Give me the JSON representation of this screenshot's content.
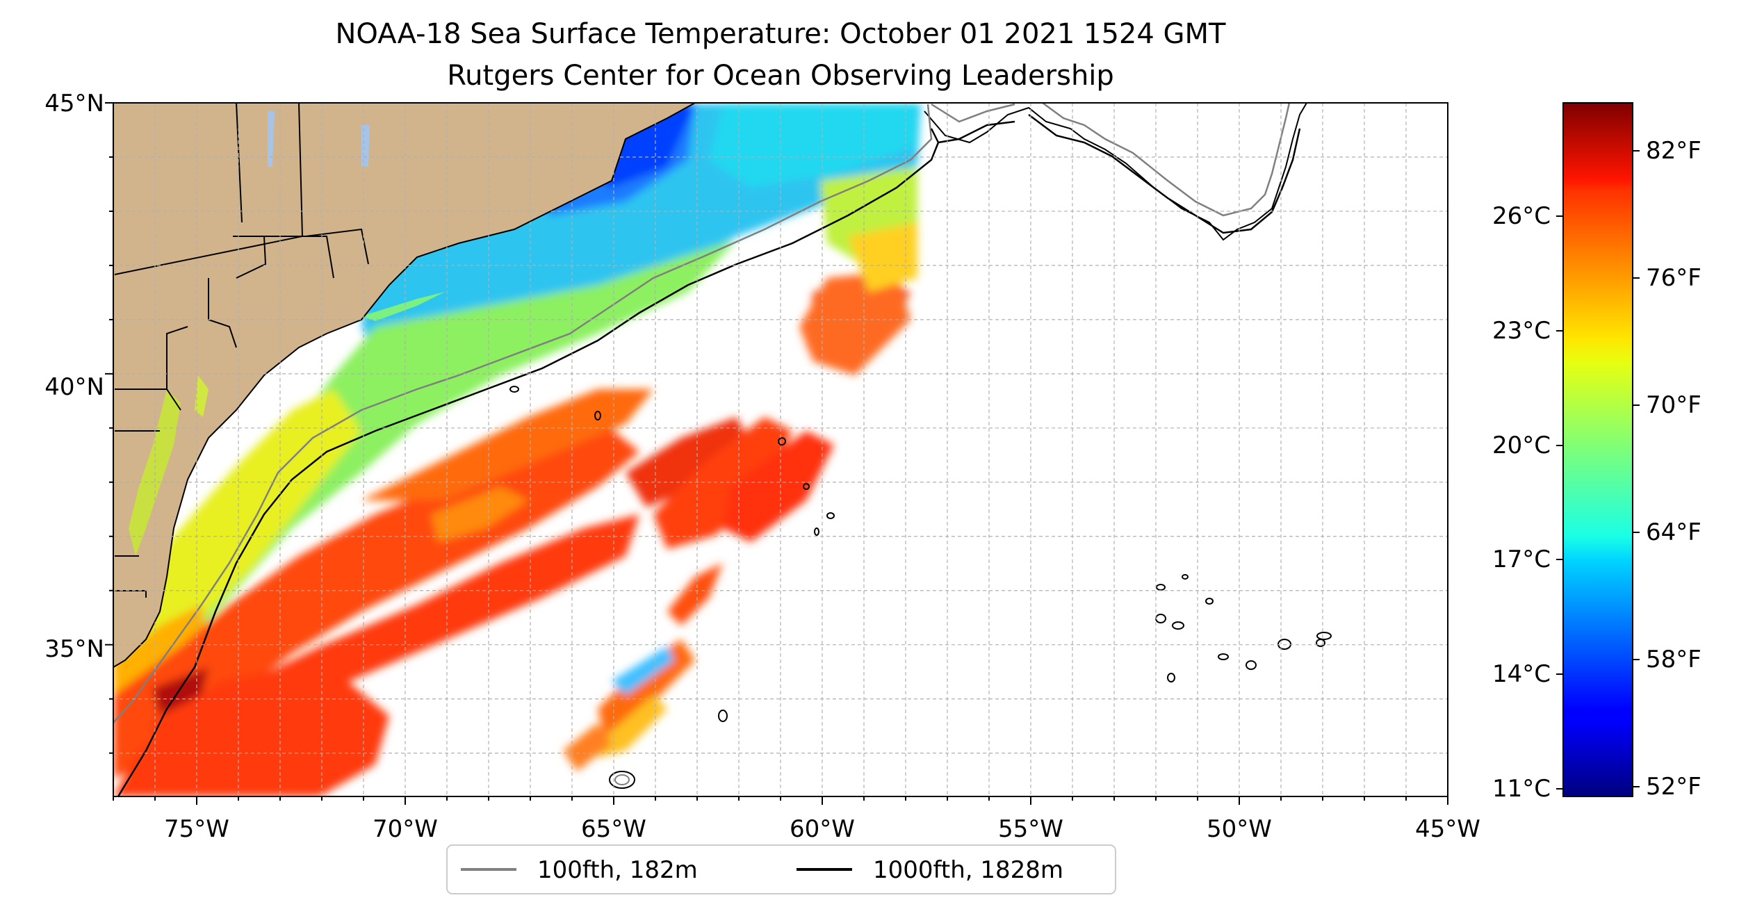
{
  "title": {
    "line1": "NOAA-18 Sea Surface Temperature: October 01 2021 1524 GMT",
    "line2": "Rutgers Center for Ocean Observing Leadership"
  },
  "map": {
    "lon_labels": [
      "75°W",
      "70°W",
      "65°W",
      "60°W",
      "55°W",
      "50°W",
      "45°W"
    ],
    "lat_labels": [
      "45°N",
      "40°N",
      "35°N"
    ],
    "lon_range": [
      -77,
      -45
    ],
    "lat_range": [
      32.2,
      45
    ],
    "grid": true,
    "land_color": "#d2b48c",
    "lake_color": "#a6c3e8"
  },
  "colorbar": {
    "colormap": "jet",
    "celsius_labels": [
      "26°C",
      "23°C",
      "20°C",
      "17°C",
      "14°C",
      "11°C"
    ],
    "fahrenheit_labels": [
      "82°F",
      "76°F",
      "70°F",
      "64°F",
      "58°F",
      "52°F"
    ]
  },
  "legend": {
    "placement": "bottom-center",
    "items": [
      {
        "label": "100fth, 182m",
        "color": "#808080"
      },
      {
        "label": "1000fth, 1828m",
        "color": "#000000"
      }
    ]
  }
}
